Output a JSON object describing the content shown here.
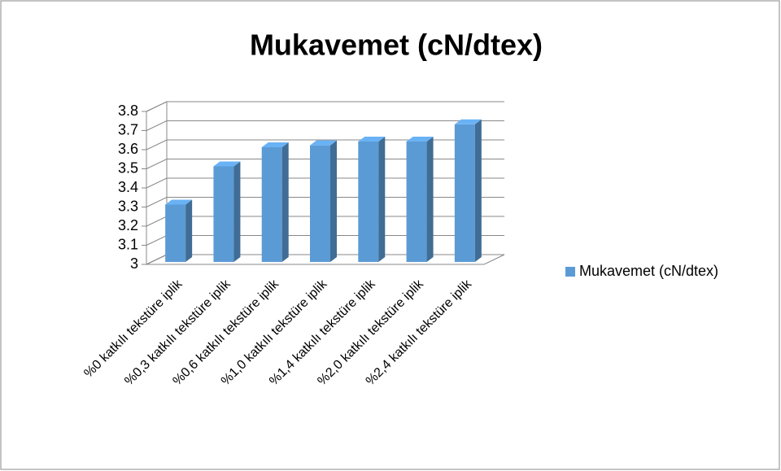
{
  "chart_data": {
    "type": "bar3d",
    "title": "Mukavemet (cN/dtex)",
    "categories": [
      "%0 katkılı tekstüre iplik",
      "%0,3 katkılı tekstüre iplik",
      "%0,6 katkılı tekstüre iplik",
      "%1,0 katkılı tekstüre iplik",
      "%1,4 katkılı tekstüre iplik",
      "%2,0 katkılı tekstüre iplik",
      "%2,4 katkılı tekstüre iplik"
    ],
    "series": [
      {
        "name": "Mukavemet (cN/dtex)",
        "color": "#5b9bd5",
        "values": [
          3.3,
          3.5,
          3.6,
          3.61,
          3.63,
          3.63,
          3.72
        ]
      }
    ],
    "ylim": [
      3,
      3.8
    ],
    "yticks": [
      3,
      3.1,
      3.2,
      3.3,
      3.4,
      3.5,
      3.6,
      3.7,
      3.8
    ],
    "grid": true,
    "legend": "right"
  }
}
